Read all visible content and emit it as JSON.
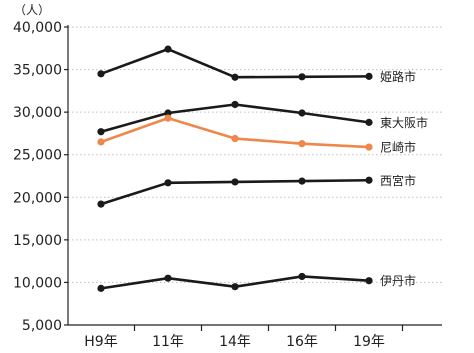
{
  "chart_data": {
    "type": "line",
    "title": "",
    "unit_label": "（人）",
    "categories": [
      "H9年",
      "11年",
      "14年",
      "16年",
      "19年"
    ],
    "ylim": [
      5000,
      40000
    ],
    "yticks": [
      5000,
      10000,
      15000,
      20000,
      25000,
      30000,
      35000,
      40000
    ],
    "ytick_labels": [
      "5,000",
      "10,000",
      "15,000",
      "20,000",
      "25,000",
      "30,000",
      "35,000",
      "40,000"
    ],
    "grid": true,
    "legend": "inline labels at right end of each line",
    "series": [
      {
        "name": "姫路市",
        "color": "#1a1a1a",
        "values": [
          34500,
          37400,
          34100,
          34150,
          34200
        ]
      },
      {
        "name": "東大阪市",
        "color": "#1a1a1a",
        "values": [
          27700,
          29900,
          30900,
          29900,
          28800
        ]
      },
      {
        "name": "尼崎市",
        "color": "#f0874a",
        "values": [
          26500,
          29300,
          26900,
          26300,
          25900
        ]
      },
      {
        "name": "西宮市",
        "color": "#1a1a1a",
        "values": [
          19200,
          21700,
          21800,
          21900,
          22000
        ]
      },
      {
        "name": "伊丹市",
        "color": "#1a1a1a",
        "values": [
          9300,
          10500,
          9500,
          10700,
          10200
        ]
      }
    ]
  }
}
